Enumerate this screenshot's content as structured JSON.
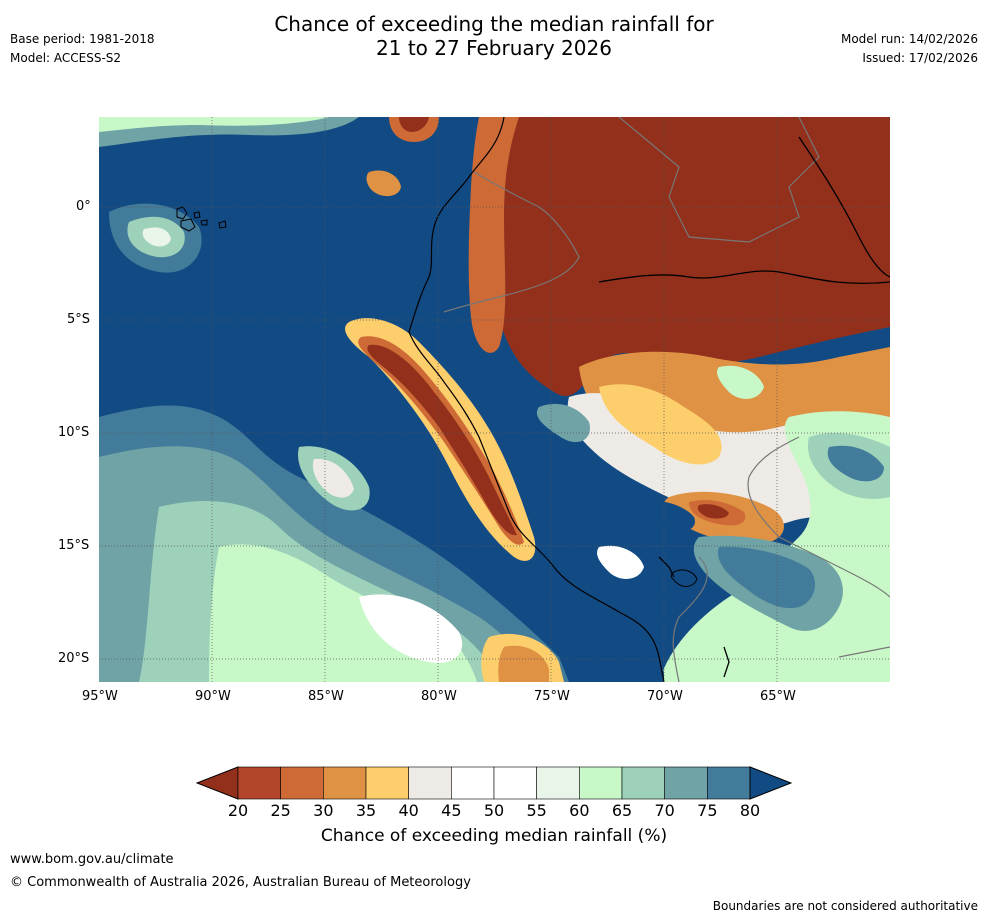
{
  "header": {
    "title_line1": "Chance of exceeding the median rainfall for",
    "title_line2": "21 to 27 February 2026",
    "base_period": "Base period: 1981-2018",
    "model": "Model: ACCESS-S2",
    "model_run": "Model run: 14/02/2026",
    "issued": "Issued: 17/02/2026"
  },
  "map": {
    "lat_labels": [
      "0°",
      "5°S",
      "10°S",
      "15°S",
      "20°S"
    ],
    "lon_labels": [
      "95°W",
      "90°W",
      "85°W",
      "80°W",
      "75°W",
      "70°W",
      "65°W"
    ]
  },
  "colorbar": {
    "title": "Chance of exceeding median rainfall (%)",
    "ticks": [
      "20",
      "25",
      "30",
      "35",
      "40",
      "45",
      "50",
      "55",
      "60",
      "65",
      "70",
      "75",
      "80"
    ],
    "colors": [
      "#93301c",
      "#b2452a",
      "#cd6a36",
      "#e09244",
      "#fdce6c",
      "#eeebe6",
      "#ffffff",
      "#ffffff",
      "#e8f5e8",
      "#c8f8c8",
      "#9ed1b9",
      "#6fa3a6",
      "#437c9b",
      "#124b84"
    ]
  },
  "footer": {
    "url": "www.bom.gov.au/climate",
    "copyright": "© Commonwealth of Australia 2026, Australian Bureau of Meteorology",
    "disclaimer": "Boundaries are not considered authoritative"
  }
}
